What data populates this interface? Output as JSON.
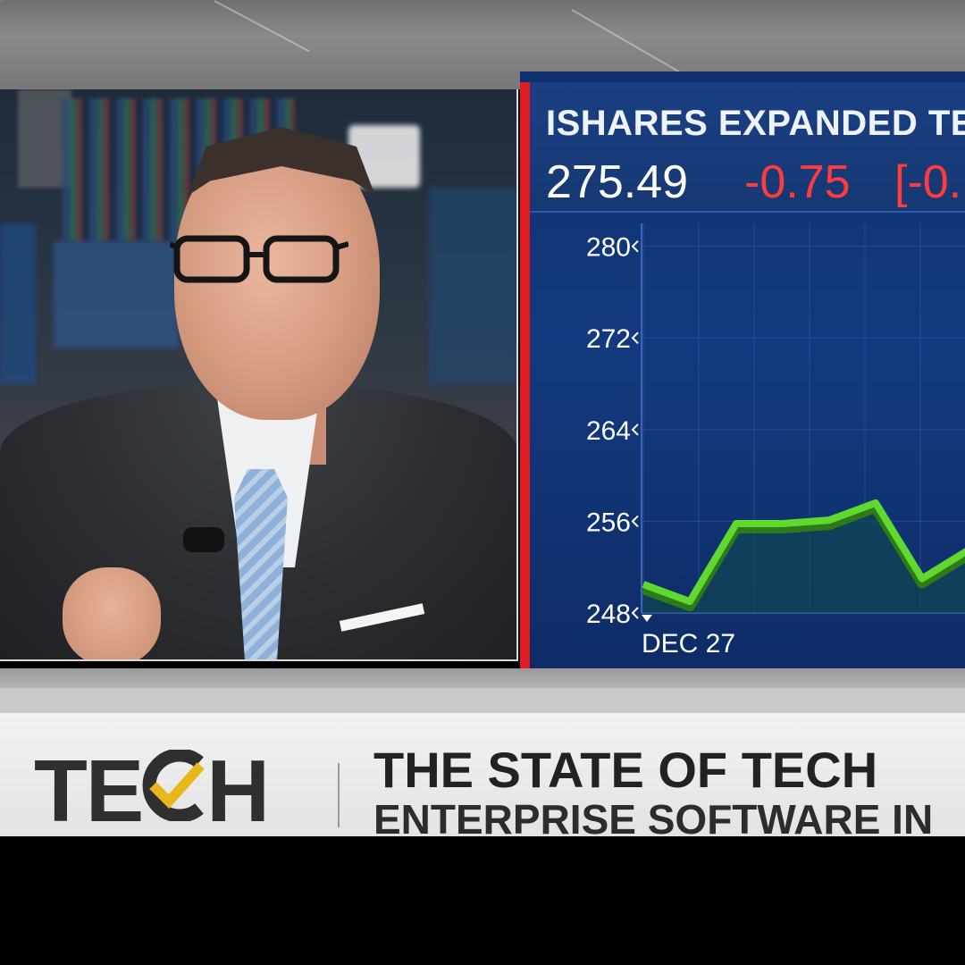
{
  "broadcast": {
    "ticker": {
      "name": "ISHARES EXPANDED TEC",
      "price": "275.49",
      "change": "-0.75",
      "change_pct": "[-0."
    },
    "lower_third": {
      "logo": "TE",
      "logo_end": "H",
      "headline": "THE STATE OF TECH",
      "subline": "ENTERPRISE SOFTWARE IN"
    }
  },
  "colors": {
    "negative": "#ff3b3b",
    "line": "#5fd92e",
    "accent_red": "#e01b22",
    "logo_check": "#e8b71a"
  },
  "chart_data": {
    "type": "area",
    "y_ticks": [
      "280",
      "272",
      "264",
      "256",
      "248"
    ],
    "ylim": [
      248,
      282
    ],
    "x_ticks": [
      "DEC 27"
    ],
    "series": [
      {
        "values": [
          250.5,
          249.0,
          255.8,
          255.8,
          256.1,
          257.6,
          251.0,
          253.5
        ]
      }
    ],
    "grid": true
  }
}
